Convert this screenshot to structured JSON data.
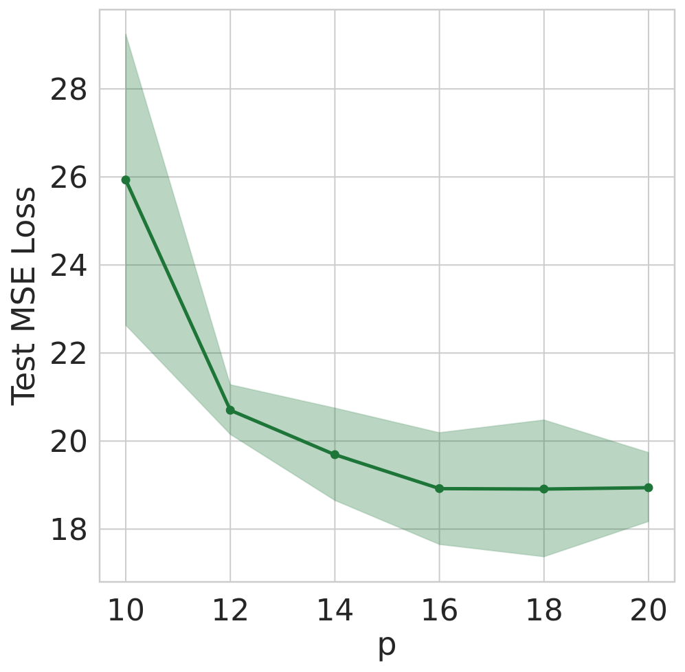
{
  "chart_data": {
    "type": "line",
    "title": "",
    "xlabel": "p",
    "ylabel": "Test MSE Loss",
    "x": [
      10,
      12,
      14,
      16,
      18,
      20
    ],
    "xticks": [
      "10",
      "12",
      "14",
      "16",
      "18",
      "20"
    ],
    "yticks": [
      "18",
      "20",
      "22",
      "24",
      "26",
      "28"
    ],
    "ytick_values": [
      18,
      20,
      22,
      24,
      26,
      28
    ],
    "xlim": [
      9.5,
      20.5
    ],
    "ylim": [
      16.8,
      29.8
    ],
    "grid": true,
    "series": [
      {
        "values": [
          25.93,
          20.7,
          19.69,
          18.92,
          18.91,
          18.94
        ],
        "lower": [
          22.63,
          20.15,
          18.65,
          17.65,
          17.37,
          18.17
        ],
        "upper": [
          29.25,
          21.28,
          20.75,
          20.19,
          20.48,
          19.74
        ],
        "color": "#1e7538",
        "band_color": "#1e7538"
      }
    ]
  }
}
